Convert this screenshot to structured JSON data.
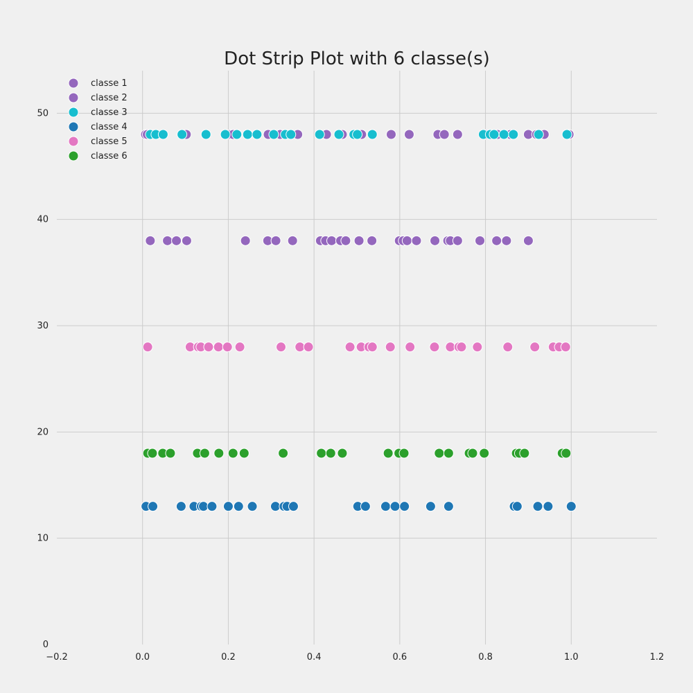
{
  "chart_data": {
    "type": "scatter",
    "title": "Dot Strip Plot with 6 classe(s)",
    "xlabel": "",
    "ylabel": "",
    "xlim": [
      -0.2,
      1.2
    ],
    "ylim": [
      0,
      54
    ],
    "x_ticks": [
      "−0.2",
      "0.0",
      "0.2",
      "0.4",
      "0.6",
      "0.8",
      "1.0",
      "1.2"
    ],
    "x_tick_values": [
      -0.2,
      0.0,
      0.2,
      0.4,
      0.6,
      0.8,
      1.0,
      1.2
    ],
    "y_ticks": [
      "0",
      "10",
      "20",
      "30",
      "40",
      "50"
    ],
    "y_tick_values": [
      0,
      10,
      20,
      30,
      40,
      50
    ],
    "grid": true,
    "legend_position": "top-left",
    "series": [
      {
        "name": "classe 1",
        "color": "#9467bd",
        "y": 48,
        "x": [
          0.007,
          0.011,
          0.102,
          0.205,
          0.211,
          0.293,
          0.321,
          0.362,
          0.429,
          0.466,
          0.511,
          0.58,
          0.622,
          0.689,
          0.704,
          0.735,
          0.801,
          0.828,
          0.858,
          0.9,
          0.919,
          0.937,
          0.995
        ]
      },
      {
        "name": "classe 2",
        "color": "#9467bd",
        "y": 38,
        "x": [
          0.018,
          0.058,
          0.079,
          0.103,
          0.24,
          0.292,
          0.311,
          0.35,
          0.415,
          0.427,
          0.441,
          0.462,
          0.474,
          0.505,
          0.535,
          0.599,
          0.608,
          0.617,
          0.639,
          0.682,
          0.712,
          0.718,
          0.735,
          0.787,
          0.826,
          0.849,
          0.9
        ]
      },
      {
        "name": "classe 3",
        "color": "#17becf",
        "y": 48,
        "x": [
          0.018,
          0.031,
          0.048,
          0.092,
          0.148,
          0.193,
          0.22,
          0.245,
          0.267,
          0.306,
          0.333,
          0.346,
          0.413,
          0.458,
          0.493,
          0.501,
          0.536,
          0.795,
          0.811,
          0.82,
          0.843,
          0.865,
          0.924,
          0.99
        ]
      },
      {
        "name": "classe 4",
        "color": "#1f77b4",
        "y": 13,
        "x": [
          0.008,
          0.024,
          0.09,
          0.12,
          0.137,
          0.142,
          0.162,
          0.2,
          0.224,
          0.256,
          0.31,
          0.33,
          0.337,
          0.352,
          0.502,
          0.52,
          0.567,
          0.589,
          0.611,
          0.672,
          0.714,
          0.867,
          0.874,
          0.922,
          0.946,
          1.0
        ]
      },
      {
        "name": "classe 5",
        "color": "#e377c2",
        "y": 28,
        "x": [
          0.012,
          0.111,
          0.13,
          0.136,
          0.154,
          0.177,
          0.198,
          0.227,
          0.323,
          0.367,
          0.387,
          0.484,
          0.51,
          0.528,
          0.536,
          0.578,
          0.624,
          0.681,
          0.718,
          0.738,
          0.744,
          0.781,
          0.852,
          0.915,
          0.958,
          0.972,
          0.987
        ]
      },
      {
        "name": "classe 6",
        "color": "#2ca02c",
        "y": 18,
        "x": [
          0.012,
          0.023,
          0.047,
          0.065,
          0.128,
          0.145,
          0.178,
          0.211,
          0.237,
          0.328,
          0.417,
          0.439,
          0.466,
          0.573,
          0.598,
          0.61,
          0.692,
          0.714,
          0.762,
          0.77,
          0.797,
          0.872,
          0.879,
          0.891,
          0.979,
          0.988
        ]
      }
    ]
  }
}
